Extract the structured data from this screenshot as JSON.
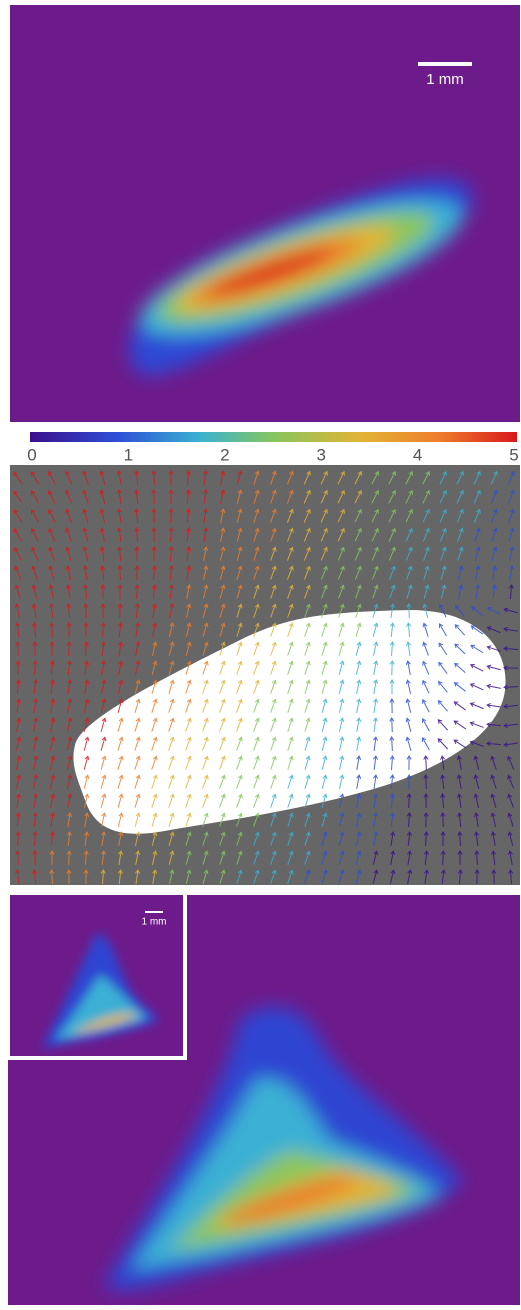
{
  "top_panel": {
    "scale_bar": "1 mm"
  },
  "colorbar": {
    "lim": [
      0,
      5
    ],
    "ticks": [
      0,
      1,
      2,
      3,
      4,
      5
    ]
  },
  "inset_panel": {
    "scale_bar": "1 mm"
  }
}
